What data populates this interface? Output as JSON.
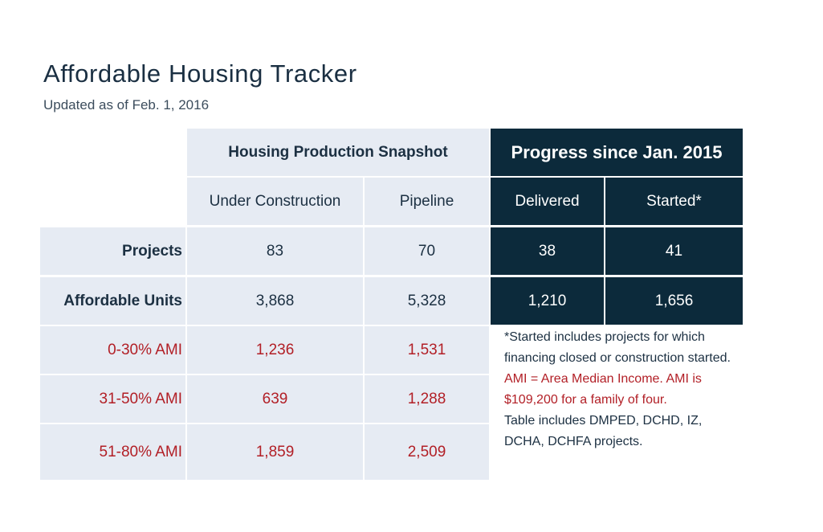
{
  "title": "Affordable Housing Tracker",
  "updated": "Updated as of Feb. 1, 2016",
  "snapshot_header": "Housing Production Snapshot",
  "progress_header": "Progress since Jan. 2015",
  "columns": {
    "under_construction": "Under Construction",
    "pipeline": "Pipeline",
    "delivered": "Delivered",
    "started": "Started*"
  },
  "rows": {
    "projects": {
      "label": "Projects",
      "under_construction": "83",
      "pipeline": "70",
      "delivered": "38",
      "started": "41"
    },
    "affordable_units": {
      "label": "Affordable Units",
      "under_construction": "3,868",
      "pipeline": "5,328",
      "delivered": "1,210",
      "started": "1,656"
    },
    "ami_0_30": {
      "label": "0-30% AMI",
      "under_construction": "1,236",
      "pipeline": "1,531"
    },
    "ami_31_50": {
      "label": "31-50% AMI",
      "under_construction": "639",
      "pipeline": "1,288"
    },
    "ami_51_80": {
      "label": "51-80% AMI",
      "under_construction": "1,859",
      "pipeline": "2,509"
    }
  },
  "notes": {
    "started": "*Started includes projects for which financing closed or construction started.",
    "ami": "AMI = Area Median Income. AMI is $109,200 for a family of four.",
    "sources": "Table includes DMPED, DCHD, IZ, DCHA, DCHFA projects."
  },
  "colors": {
    "light_cell": "#e6ebf3",
    "dark_cell": "#0c2a3b",
    "accent_red": "#b21f26",
    "text": "#1c3042"
  }
}
